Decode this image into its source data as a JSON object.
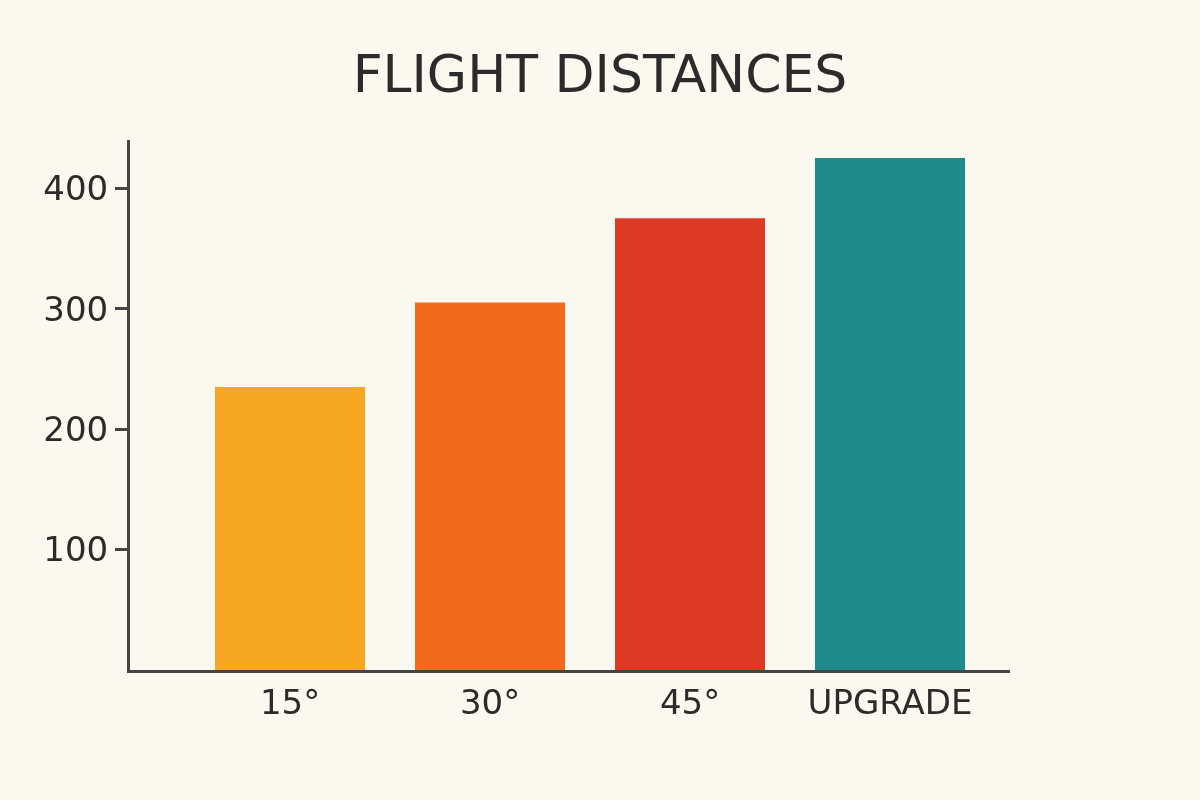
{
  "chart_data": {
    "type": "bar",
    "title": "FLIGHT DISTANCES",
    "categories": [
      "15°",
      "30°",
      "45°",
      "UPGRADE"
    ],
    "values": [
      235,
      305,
      375,
      425
    ],
    "colors": [
      "#f5a623",
      "#f26a1b",
      "#dc3a24",
      "#1f8a8a"
    ],
    "ylim": [
      0,
      440
    ],
    "yticks": [
      100,
      200,
      300,
      400
    ],
    "grid": false
  }
}
